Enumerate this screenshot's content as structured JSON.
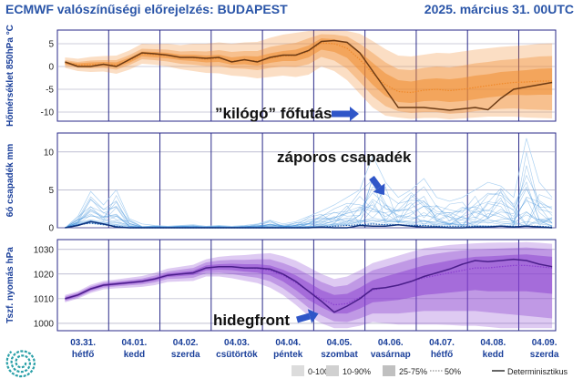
{
  "header": {
    "title": "ECMWF valószínűségi előrejelzés: BUDAPEST",
    "date": "2025. március 31. 00UTC"
  },
  "days": [
    {
      "date": "03.31.",
      "day": "hétfő"
    },
    {
      "date": "04.01.",
      "day": "kedd"
    },
    {
      "date": "04.02.",
      "day": "szerda"
    },
    {
      "date": "04.03.",
      "day": "csütörtök"
    },
    {
      "date": "04.04.",
      "day": "péntek"
    },
    {
      "date": "04.05.",
      "day": "szombat"
    },
    {
      "date": "04.06.",
      "day": "vasárnap"
    },
    {
      "date": "04.07.",
      "day": "hétfő"
    },
    {
      "date": "04.08.",
      "day": "kedd"
    },
    {
      "date": "04.09.",
      "day": "szerda"
    }
  ],
  "annotations": {
    "temp": "”kilógó” főfutás",
    "precip": "záporos csapadék",
    "pressure": "hidegfront"
  },
  "legend": {
    "items": [
      "0-100%",
      "10-90%",
      "25-75%",
      "50%",
      "Determinisztikus"
    ]
  },
  "colors": {
    "temp": "#f0892a",
    "precip": "#3b8fd9",
    "pressure": "#8a3fcf",
    "arrow": "#2f56c8",
    "grid": "#2a2a8a"
  },
  "chart_data": [
    {
      "type": "area",
      "ylabel": "Hőmérséklet 850hPa °C",
      "ylim": [
        -12,
        8
      ],
      "yticks": [
        -10,
        -5,
        0,
        5
      ],
      "grid": "on",
      "x": [
        0,
        0.25,
        0.5,
        0.75,
        1,
        1.25,
        1.5,
        1.75,
        2,
        2.25,
        2.5,
        2.75,
        3,
        3.25,
        3.5,
        3.75,
        4,
        4.25,
        4.5,
        4.75,
        5,
        5.25,
        5.5,
        5.75,
        6,
        6.25,
        6.5,
        6.75,
        7,
        7.25,
        7.5,
        7.75,
        8,
        8.25,
        8.5,
        8.75,
        9,
        9.25,
        9.5
      ],
      "deterministic": [
        1,
        0,
        0,
        0.5,
        0,
        1.5,
        3,
        2.8,
        2.5,
        2,
        2,
        1.8,
        2,
        1,
        1.5,
        1,
        2,
        2.5,
        2.5,
        3.5,
        5.5,
        5.7,
        5.3,
        3,
        -1,
        -5,
        -9,
        -9,
        -9,
        -9.3,
        -9.6,
        -9.3,
        -9,
        -9.5,
        -7,
        -5,
        -4.5,
        -4,
        -3.5
      ],
      "median": [
        0.8,
        0.3,
        0.4,
        0.5,
        0.3,
        1.3,
        2.8,
        2.6,
        2.4,
        2,
        1.9,
        1.6,
        1.8,
        1.2,
        1.4,
        1.2,
        1.8,
        2.3,
        2.4,
        3.3,
        5.2,
        5,
        4,
        1.5,
        -1.5,
        -4,
        -5.5,
        -5.7,
        -5.2,
        -5,
        -5.3,
        -5,
        -4.6,
        -4.2,
        -3.8,
        -3.5,
        -3.4,
        -3.2,
        -3.2
      ],
      "p25_75": [
        [
          0.5,
          1.1
        ],
        [
          0,
          0.7
        ],
        [
          0,
          0.9
        ],
        [
          0.1,
          1
        ],
        [
          -0.2,
          0.9
        ],
        [
          0.8,
          1.9
        ],
        [
          2.2,
          3.3
        ],
        [
          2,
          3.2
        ],
        [
          1.8,
          3
        ],
        [
          1.4,
          2.6
        ],
        [
          1.2,
          2.6
        ],
        [
          0.9,
          2.4
        ],
        [
          1,
          2.6
        ],
        [
          0.4,
          2
        ],
        [
          0.5,
          2.3
        ],
        [
          0.2,
          2.2
        ],
        [
          0.8,
          2.9
        ],
        [
          1.2,
          3.4
        ],
        [
          1.2,
          3.7
        ],
        [
          2,
          4.6
        ],
        [
          3.7,
          6.2
        ],
        [
          3.2,
          6
        ],
        [
          1.9,
          5.3
        ],
        [
          -1,
          3.2
        ],
        [
          -4,
          0.8
        ],
        [
          -6.5,
          -1.5
        ],
        [
          -7.8,
          -3
        ],
        [
          -8,
          -3.3
        ],
        [
          -7.6,
          -2.8
        ],
        [
          -7.5,
          -2.6
        ],
        [
          -7.8,
          -2.8
        ],
        [
          -7.6,
          -2.5
        ],
        [
          -7.2,
          -2
        ],
        [
          -6.8,
          -1.7
        ],
        [
          -6.5,
          -1.2
        ],
        [
          -6.2,
          -1
        ],
        [
          -6.3,
          -0.8
        ],
        [
          -6.2,
          -0.5
        ],
        [
          -6.2,
          -0.4
        ]
      ],
      "p10_90": [
        [
          0.2,
          1.4
        ],
        [
          -0.3,
          1
        ],
        [
          -0.4,
          1.3
        ],
        [
          -0.3,
          1.4
        ],
        [
          -0.7,
          1.4
        ],
        [
          0.3,
          2.5
        ],
        [
          1.6,
          3.9
        ],
        [
          1.4,
          3.8
        ],
        [
          1.1,
          3.7
        ],
        [
          0.6,
          3.3
        ],
        [
          0.4,
          3.4
        ],
        [
          0.1,
          3.3
        ],
        [
          0.1,
          3.6
        ],
        [
          -0.4,
          3.2
        ],
        [
          -0.5,
          3.4
        ],
        [
          -0.8,
          3.4
        ],
        [
          -0.3,
          4.3
        ],
        [
          0,
          4.8
        ],
        [
          -0.1,
          5.2
        ],
        [
          0.5,
          6.2
        ],
        [
          2.1,
          7.1
        ],
        [
          1.3,
          7
        ],
        [
          -0.5,
          6.6
        ],
        [
          -3.4,
          5
        ],
        [
          -6.5,
          3
        ],
        [
          -8.7,
          0.9
        ],
        [
          -9.8,
          -0.6
        ],
        [
          -10.2,
          -0.8
        ],
        [
          -10,
          -0.3
        ],
        [
          -10,
          0
        ],
        [
          -10.4,
          -0.2
        ],
        [
          -10.2,
          0.2
        ],
        [
          -9.8,
          0.7
        ],
        [
          -9.5,
          1
        ],
        [
          -9.3,
          1.4
        ],
        [
          -9.2,
          1.6
        ],
        [
          -9.4,
          1.9
        ],
        [
          -9.5,
          2.2
        ],
        [
          -9.6,
          2.3
        ]
      ],
      "p0_100": [
        [
          -0.3,
          2
        ],
        [
          -1,
          1.7
        ],
        [
          -1.2,
          2.1
        ],
        [
          -1.1,
          2.3
        ],
        [
          -1.6,
          2.4
        ],
        [
          -0.7,
          3.5
        ],
        [
          0.6,
          5
        ],
        [
          0.4,
          4.9
        ],
        [
          0,
          5
        ],
        [
          -0.6,
          4.7
        ],
        [
          -1,
          5
        ],
        [
          -1.4,
          5
        ],
        [
          -1.5,
          5.3
        ],
        [
          -2,
          5
        ],
        [
          -2.2,
          5.3
        ],
        [
          -2.6,
          5.4
        ],
        [
          -2.3,
          6.3
        ],
        [
          -2,
          7
        ],
        [
          -2.3,
          7.4
        ],
        [
          -1.8,
          7.8
        ],
        [
          0,
          7.9
        ],
        [
          -1,
          7.9
        ],
        [
          -3,
          7.8
        ],
        [
          -6,
          7.2
        ],
        [
          -9,
          5.6
        ],
        [
          -10.8,
          3.8
        ],
        [
          -11.2,
          2.4
        ],
        [
          -11.5,
          2.2
        ],
        [
          -11.3,
          2.6
        ],
        [
          -11.3,
          3
        ],
        [
          -11.6,
          2.9
        ],
        [
          -11.4,
          3.3
        ],
        [
          -11.2,
          3.7
        ],
        [
          -11,
          4
        ],
        [
          -11,
          4.3
        ],
        [
          -11,
          4.5
        ],
        [
          -11.2,
          4.7
        ],
        [
          -11.3,
          5
        ],
        [
          -11.4,
          5.1
        ]
      ]
    },
    {
      "type": "line",
      "ylabel": "6ó csapadék mm",
      "ylim": [
        0,
        12.5
      ],
      "yticks": [
        0,
        5,
        10
      ],
      "grid": "on",
      "x": [
        0,
        0.25,
        0.5,
        0.75,
        1,
        1.25,
        1.5,
        1.75,
        2,
        2.25,
        2.5,
        2.75,
        3,
        3.25,
        3.5,
        3.75,
        4,
        4.25,
        4.5,
        4.75,
        5,
        5.25,
        5.5,
        5.75,
        6,
        6.25,
        6.5,
        6.75,
        7,
        7.25,
        7.5,
        7.75,
        8,
        8.25,
        8.5,
        8.75,
        9,
        9.25,
        9.5
      ],
      "deterministic": [
        0,
        0.3,
        0.8,
        0.5,
        0.1,
        0,
        0,
        0,
        0,
        0,
        0,
        0,
        0,
        0,
        0,
        0,
        0,
        0,
        0,
        0,
        0.1,
        0,
        0,
        0.3,
        0.2,
        0.2,
        0.4,
        0.2,
        0.1,
        0.1,
        0,
        0,
        0.1,
        0.1,
        0.2,
        0.1,
        0.2,
        0.1,
        0
      ],
      "median": [
        0,
        0.4,
        0.6,
        0.4,
        0.2,
        0,
        0,
        0,
        0,
        0,
        0,
        0,
        0,
        0,
        0,
        0,
        0,
        0,
        0,
        0,
        0.1,
        0.2,
        0.3,
        0.4,
        0.5,
        0.4,
        0.4,
        0.3,
        0.3,
        0.2,
        0.2,
        0.2,
        0.2,
        0.2,
        0.2,
        0.2,
        0.2,
        0.2,
        0.1
      ],
      "max": [
        0,
        1.5,
        4.8,
        3,
        5,
        1.2,
        0.5,
        0.3,
        0.2,
        0.3,
        0.4,
        0.2,
        0.3,
        0.2,
        0.3,
        0.5,
        1,
        0.5,
        0.8,
        1.5,
        2.2,
        3,
        4,
        5,
        9.5,
        6,
        4,
        5,
        6.5,
        4,
        3.5,
        4,
        5,
        6,
        5.5,
        4,
        11.8,
        6,
        4
      ]
    },
    {
      "type": "area",
      "ylabel": "Tszf. nyomás hPa",
      "ylim": [
        997,
        1034
      ],
      "yticks": [
        1000,
        1010,
        1020,
        1030
      ],
      "grid": "on",
      "x": [
        0,
        0.25,
        0.5,
        0.75,
        1,
        1.25,
        1.5,
        1.75,
        2,
        2.25,
        2.5,
        2.75,
        3,
        3.25,
        3.5,
        3.75,
        4,
        4.25,
        4.5,
        4.75,
        5,
        5.25,
        5.5,
        5.75,
        6,
        6.25,
        6.5,
        6.75,
        7,
        7.25,
        7.5,
        7.75,
        8,
        8.25,
        8.5,
        8.75,
        9,
        9.25,
        9.5
      ],
      "deterministic": [
        1010,
        1011.5,
        1014,
        1015.5,
        1016,
        1016.5,
        1017,
        1018,
        1019.5,
        1020,
        1020.5,
        1022.5,
        1023,
        1023,
        1022.5,
        1022.5,
        1022,
        1020,
        1017,
        1013,
        1009,
        1004.5,
        1007,
        1010,
        1014,
        1014.5,
        1015.5,
        1017,
        1019,
        1020.5,
        1022,
        1024,
        1025.5,
        1025,
        1025.5,
        1026,
        1025.5,
        1024,
        1023
      ],
      "median": [
        1010,
        1011.5,
        1014,
        1015.5,
        1016,
        1016.5,
        1017,
        1018,
        1019.5,
        1020,
        1020.5,
        1022.5,
        1023,
        1023,
        1022.5,
        1022.3,
        1021.5,
        1019.5,
        1016.5,
        1013,
        1010,
        1007.5,
        1008,
        1010.5,
        1013.5,
        1014.5,
        1015.5,
        1017,
        1018.5,
        1019.5,
        1020.5,
        1021.5,
        1022.5,
        1022.5,
        1023,
        1023.5,
        1023.5,
        1023,
        1022.5
      ],
      "p25_75": [
        [
          1009.5,
          1010.5
        ],
        [
          1011,
          1012
        ],
        [
          1013.5,
          1014.5
        ],
        [
          1015,
          1016
        ],
        [
          1015.5,
          1016.5
        ],
        [
          1016,
          1017
        ],
        [
          1016.5,
          1017.6
        ],
        [
          1017.4,
          1018.6
        ],
        [
          1018.8,
          1020.2
        ],
        [
          1019.2,
          1020.8
        ],
        [
          1019.6,
          1021.4
        ],
        [
          1021.5,
          1023.5
        ],
        [
          1021.8,
          1024
        ],
        [
          1021.6,
          1024.2
        ],
        [
          1021,
          1024
        ],
        [
          1020.6,
          1024
        ],
        [
          1019.5,
          1023.5
        ],
        [
          1017,
          1021.8
        ],
        [
          1013.5,
          1019.5
        ],
        [
          1009.5,
          1016.5
        ],
        [
          1006.5,
          1013.5
        ],
        [
          1004,
          1011.5
        ],
        [
          1004,
          1012
        ],
        [
          1006,
          1014.5
        ],
        [
          1008.5,
          1017.5
        ],
        [
          1009,
          1019
        ],
        [
          1009.5,
          1020.5
        ],
        [
          1010.5,
          1022
        ],
        [
          1011.5,
          1023.5
        ],
        [
          1012,
          1024.5
        ],
        [
          1012.5,
          1025.5
        ],
        [
          1013,
          1026.3
        ],
        [
          1013.5,
          1027
        ],
        [
          1013,
          1027.2
        ],
        [
          1013,
          1027.5
        ],
        [
          1013,
          1027.8
        ],
        [
          1013,
          1028
        ],
        [
          1012.5,
          1027.5
        ],
        [
          1012,
          1027
        ]
      ],
      "p10_90": [
        [
          1009,
          1011
        ],
        [
          1010.5,
          1012.5
        ],
        [
          1013,
          1015
        ],
        [
          1014.5,
          1016.5
        ],
        [
          1015,
          1017
        ],
        [
          1015.4,
          1017.6
        ],
        [
          1015.8,
          1018.2
        ],
        [
          1016.6,
          1019.4
        ],
        [
          1018,
          1021
        ],
        [
          1018.2,
          1021.8
        ],
        [
          1018.5,
          1022.5
        ],
        [
          1020.3,
          1024.7
        ],
        [
          1020.5,
          1025.5
        ],
        [
          1020,
          1025.8
        ],
        [
          1019.2,
          1025.8
        ],
        [
          1018.5,
          1026
        ],
        [
          1017,
          1026
        ],
        [
          1014.3,
          1024.5
        ],
        [
          1010.5,
          1022.5
        ],
        [
          1006.3,
          1019.7
        ],
        [
          1003.2,
          1016.8
        ],
        [
          1000.8,
          1014.8
        ],
        [
          1000.5,
          1015.5
        ],
        [
          1002,
          1018.5
        ],
        [
          1004,
          1021.5
        ],
        [
          1004,
          1023
        ],
        [
          1004,
          1024.5
        ],
        [
          1004.5,
          1026
        ],
        [
          1005,
          1027.5
        ],
        [
          1005,
          1028.3
        ],
        [
          1005,
          1029
        ],
        [
          1005,
          1029.6
        ],
        [
          1005,
          1030
        ],
        [
          1004.5,
          1030.2
        ],
        [
          1004,
          1030.4
        ],
        [
          1003.5,
          1030.6
        ],
        [
          1003,
          1030.8
        ],
        [
          1002.5,
          1030.4
        ],
        [
          1002,
          1030
        ]
      ],
      "p0_100": [
        [
          1008.5,
          1011.5
        ],
        [
          1010,
          1013
        ],
        [
          1012.3,
          1015.7
        ],
        [
          1013.8,
          1017.2
        ],
        [
          1014.2,
          1017.8
        ],
        [
          1014.5,
          1018.5
        ],
        [
          1014.8,
          1019.2
        ],
        [
          1015.5,
          1020.5
        ],
        [
          1016.8,
          1022.2
        ],
        [
          1017,
          1023
        ],
        [
          1017.2,
          1023.8
        ],
        [
          1019,
          1026
        ],
        [
          1019,
          1027
        ],
        [
          1018.3,
          1027.5
        ],
        [
          1017.3,
          1027.7
        ],
        [
          1016.3,
          1028.2
        ],
        [
          1014.5,
          1028.5
        ],
        [
          1011.5,
          1027.3
        ],
        [
          1007.5,
          1025.5
        ],
        [
          1003,
          1022.8
        ],
        [
          1000,
          1020
        ],
        [
          998,
          1018
        ],
        [
          998,
          1019
        ],
        [
          999,
          1021.5
        ],
        [
          1000.5,
          1024.5
        ],
        [
          1000,
          1026
        ],
        [
          999.5,
          1027.5
        ],
        [
          999.5,
          1029
        ],
        [
          999.5,
          1030.5
        ],
        [
          999.5,
          1031.2
        ],
        [
          999.3,
          1031.8
        ],
        [
          999,
          1032.2
        ],
        [
          999,
          1032.5
        ],
        [
          998.5,
          1032.7
        ],
        [
          998,
          1032.8
        ],
        [
          998,
          1032.8
        ],
        [
          998,
          1033
        ],
        [
          998,
          1032.7
        ],
        [
          998,
          1032.3
        ]
      ]
    }
  ]
}
